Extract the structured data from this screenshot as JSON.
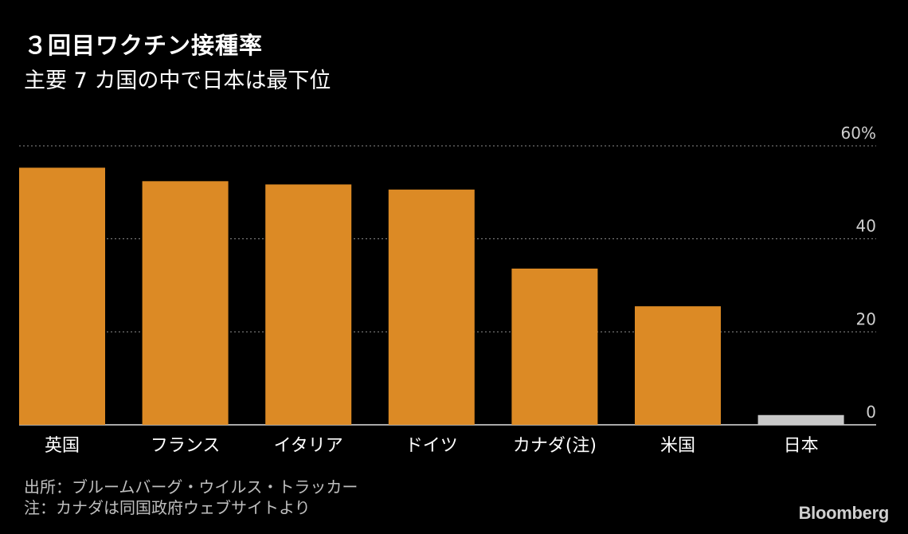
{
  "title": "３回目ワクチン接種率",
  "subtitle": "主要 7 カ国の中で日本は最下位",
  "chart_data": {
    "type": "bar",
    "title": "３回目ワクチン接種率",
    "subtitle": "主要 7 カ国の中で日本は最下位",
    "categories": [
      "英国",
      "フランス",
      "イタリア",
      "ドイツ",
      "カナダ(注)",
      "米国",
      "日本"
    ],
    "values": [
      55.3,
      52.4,
      51.7,
      50.6,
      33.6,
      25.5,
      2.1
    ],
    "bar_colors": [
      "#dc8a25",
      "#dc8a25",
      "#dc8a25",
      "#dc8a25",
      "#dc8a25",
      "#dc8a25",
      "#c8c8c8"
    ],
    "ylim": [
      0,
      60
    ],
    "yticks": [
      0,
      20,
      40,
      60
    ],
    "ytick_labels": [
      "0",
      "20",
      "40",
      "60%"
    ],
    "grid": true,
    "ylabel": "",
    "xlabel": ""
  },
  "source_lines": [
    "出所：ブルームバーグ・ウイルス・トラッカー",
    "注：カナダは同国政府ウェブサイトより"
  ],
  "brand": "Bloomberg",
  "colors": {
    "background": "#000000",
    "bar": "#dc8a25",
    "highlight_bar": "#c8c8c8",
    "grid": "#8a8a8a",
    "text": "#ffffff",
    "muted_text": "#bfbfbf"
  }
}
